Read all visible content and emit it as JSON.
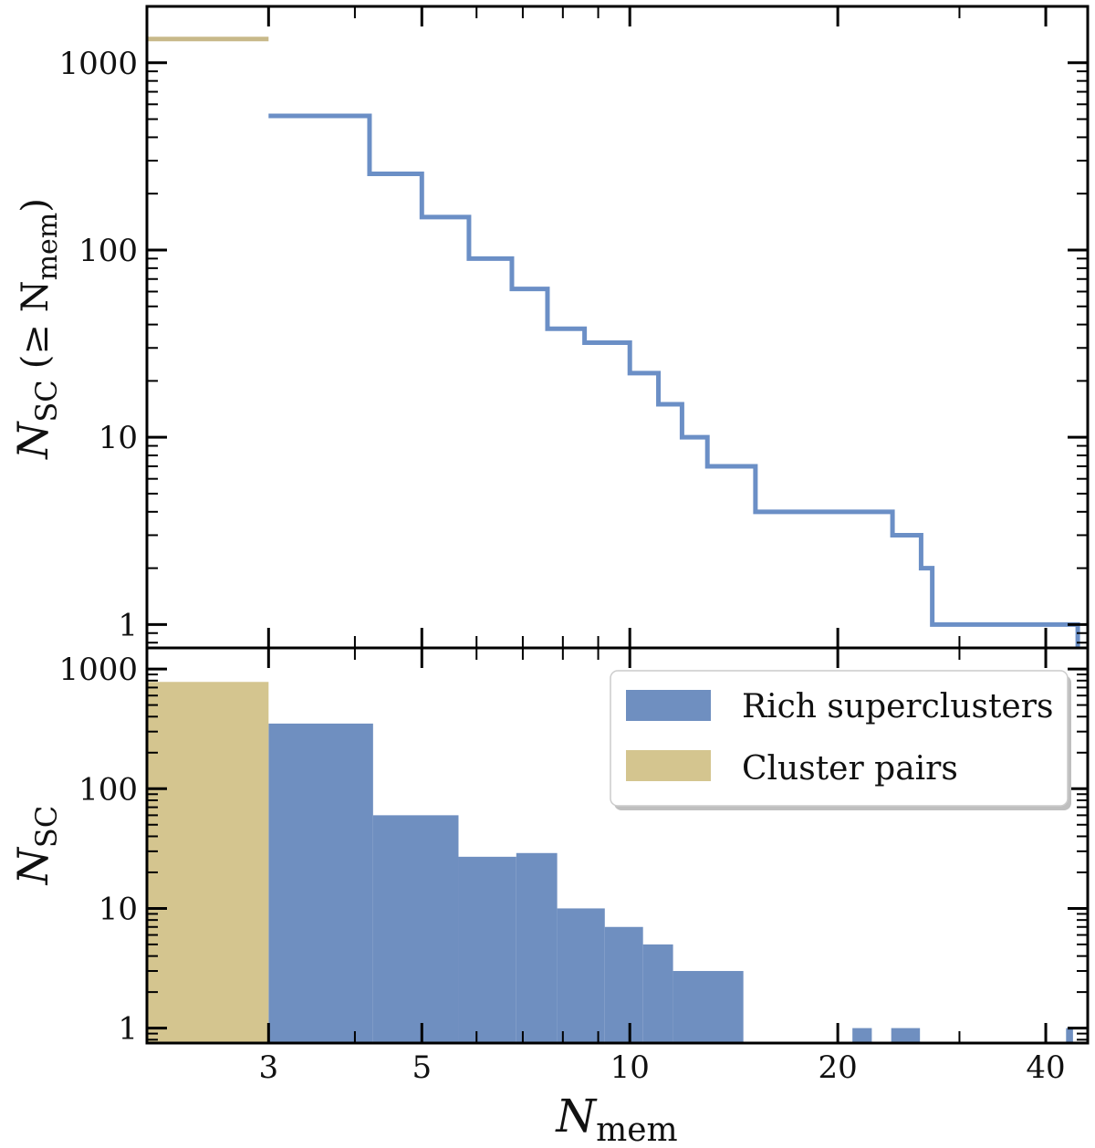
{
  "colors": {
    "rich": "#6f8fc0",
    "rich_line": "#6b8fc6",
    "pairs": "#d4c58f",
    "pairs_line": "#c8b98a",
    "frame": "#000000"
  },
  "chart_data": [
    {
      "id": "top",
      "type": "line",
      "drawstyle": "steps-post",
      "xscale": "log",
      "yscale": "log",
      "xlim": [
        2,
        46
      ],
      "ylim": [
        0.75,
        2000
      ],
      "ylabel": {
        "main": "N",
        "sub": "SC",
        "rest": "(≥ N",
        "sub2": "mem",
        "close": ")"
      },
      "yticks": [
        1,
        10,
        100,
        1000
      ],
      "ytick_labels": [
        "1",
        "10",
        "100",
        "1000"
      ],
      "series": [
        {
          "name": "Rich superclusters",
          "color_key": "rich_line",
          "x": [
            3,
            4.2,
            5,
            5.85,
            6.75,
            7.6,
            8.6,
            10,
            11,
            11.9,
            12.95,
            15.2,
            24,
            26.4,
            27.4,
            44.5
          ],
          "y": [
            520,
            255,
            150,
            90,
            62,
            38,
            32,
            22,
            15,
            10,
            7,
            4,
            3,
            2,
            1,
            1
          ]
        },
        {
          "name": "Cluster pairs",
          "color_key": "pairs_line",
          "x": [
            2,
            3
          ],
          "y": [
            1340,
            1340
          ]
        }
      ]
    },
    {
      "id": "bottom",
      "type": "bar",
      "xscale": "log",
      "yscale": "log",
      "xlim": [
        2,
        46
      ],
      "ylim": [
        0.75,
        1500
      ],
      "xlabel": {
        "main": "N",
        "sub": "mem"
      },
      "ylabel": {
        "main": "N",
        "sub": "SC"
      },
      "xticks": [
        3,
        5,
        10,
        20,
        40
      ],
      "xtick_labels": [
        "3",
        "5",
        "10",
        "20",
        "40"
      ],
      "yticks": [
        1,
        10,
        100,
        1000
      ],
      "ytick_labels": [
        "1",
        "10",
        "100",
        "1000"
      ],
      "series": [
        {
          "name": "Rich superclusters",
          "color_key": "rich",
          "bins": [
            {
              "x0": 3,
              "x1": 4.25,
              "value": 350
            },
            {
              "x0": 4.25,
              "x1": 5.65,
              "value": 60
            },
            {
              "x0": 5.65,
              "x1": 6.85,
              "value": 27
            },
            {
              "x0": 6.85,
              "x1": 7.85,
              "value": 29
            },
            {
              "x0": 7.85,
              "x1": 9.2,
              "value": 10
            },
            {
              "x0": 9.2,
              "x1": 10.45,
              "value": 7
            },
            {
              "x0": 10.45,
              "x1": 11.55,
              "value": 5
            },
            {
              "x0": 11.55,
              "x1": 14.6,
              "value": 3
            },
            {
              "x0": 21.0,
              "x1": 22.4,
              "value": 1
            },
            {
              "x0": 23.9,
              "x1": 26.3,
              "value": 1
            },
            {
              "x0": 42.8,
              "x1": 43.8,
              "value": 1
            }
          ]
        },
        {
          "name": "Cluster pairs",
          "color_key": "pairs",
          "bins": [
            {
              "x0": 2,
              "x1": 3,
              "value": 780
            }
          ]
        }
      ],
      "legend": {
        "position": "upper-right",
        "entries": [
          {
            "label": "Rich superclusters",
            "color_key": "rich"
          },
          {
            "label": "Cluster pairs",
            "color_key": "pairs"
          }
        ]
      }
    }
  ]
}
